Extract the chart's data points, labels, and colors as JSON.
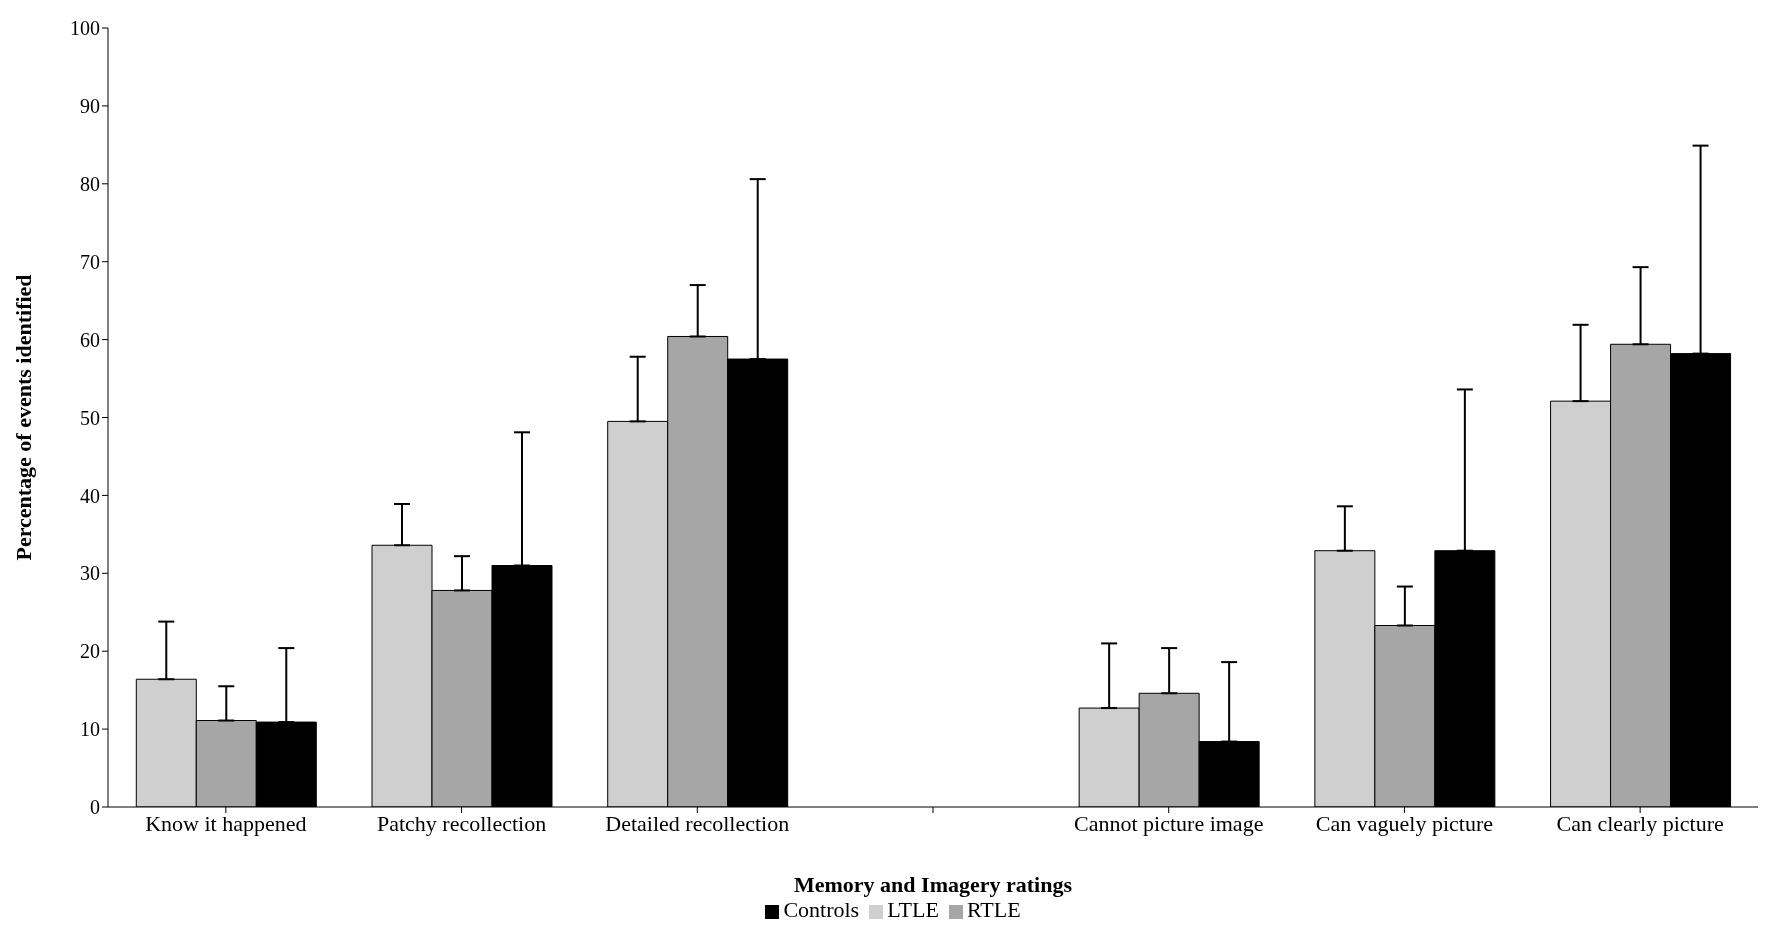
{
  "chart_data": {
    "type": "bar",
    "xlabel": "Memory and Imagery ratings",
    "ylabel": "Percentage of events identified",
    "categories": [
      "Know it happened",
      "Patchy recollection",
      "Detailed recollection",
      null,
      "Cannot picture image",
      "Can vaguely picture",
      "Can clearly picture"
    ],
    "series": [
      {
        "name": "LTLE",
        "color": "#cfcfcf",
        "values": [
          16.4,
          33.6,
          49.5,
          null,
          12.7,
          32.9,
          52.1
        ],
        "errors": [
          [
            16.4,
            23.8
          ],
          [
            33.6,
            38.9
          ],
          [
            49.5,
            57.8
          ],
          null,
          [
            12.7,
            21.0
          ],
          [
            32.9,
            38.6
          ],
          [
            52.1,
            61.9
          ]
        ]
      },
      {
        "name": "RTLE",
        "color": "#a6a6a6",
        "values": [
          11.1,
          27.8,
          60.4,
          null,
          14.6,
          23.3,
          59.4
        ],
        "errors": [
          [
            11.1,
            15.5
          ],
          [
            27.8,
            32.2
          ],
          [
            60.4,
            67.0
          ],
          null,
          [
            14.6,
            20.4
          ],
          [
            23.3,
            28.3
          ],
          [
            59.4,
            69.3
          ]
        ]
      },
      {
        "name": "Controls",
        "color": "#000000",
        "values": [
          10.9,
          31.0,
          57.5,
          null,
          8.4,
          32.9,
          58.2
        ],
        "errors": [
          [
            10.9,
            20.4
          ],
          [
            31.0,
            48.1
          ],
          [
            57.5,
            80.6
          ],
          null,
          [
            8.4,
            18.6
          ],
          [
            32.9,
            53.6
          ],
          [
            58.2,
            84.9
          ]
        ]
      }
    ],
    "ylim": [
      0,
      100
    ],
    "yticks": [
      0,
      10,
      20,
      30,
      40,
      50,
      60,
      70,
      80,
      90,
      100
    ],
    "grid": false,
    "legend": "bottom"
  }
}
